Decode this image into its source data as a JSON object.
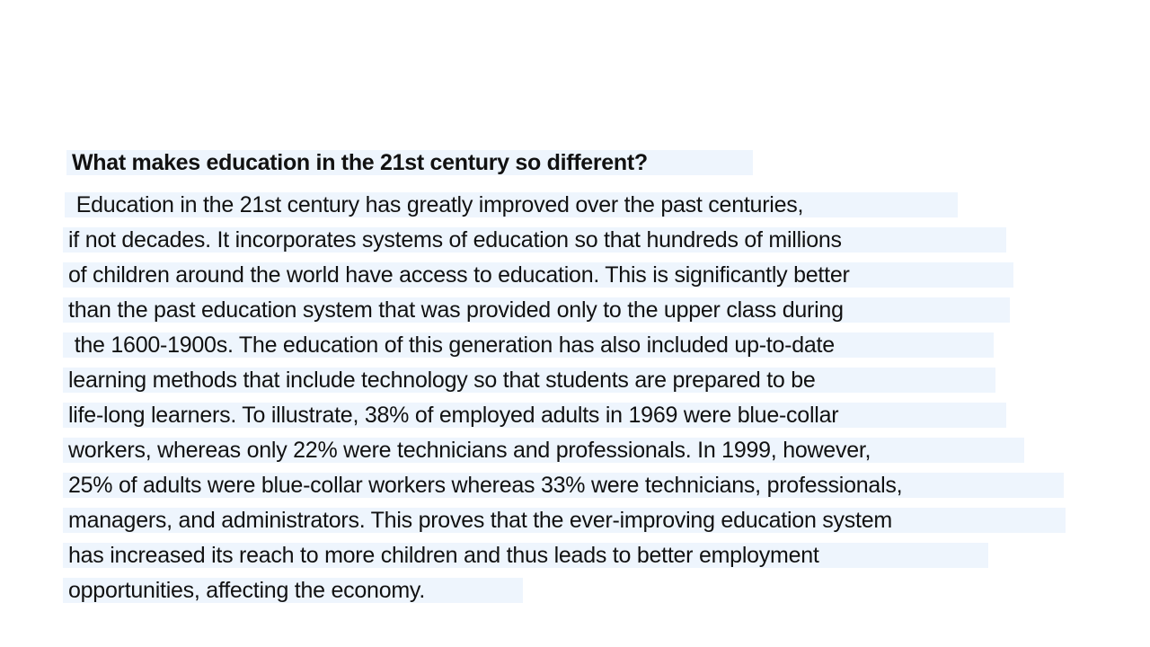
{
  "document": {
    "title": "What makes education in the 21st century so different?",
    "lines": [
      " Education in the 21st century has greatly improved over the past centuries,",
      "if not decades. It incorporates systems of education so that hundreds of millions",
      "of children around the world have access to education. This is significantly better",
      "than the past education system that was provided only to the upper class during",
      " the 1600-1900s. The education of this generation has also included up-to-date",
      "learning methods that include technology so that students are prepared to be",
      "life-long learners. To illustrate, 38% of employed adults in 1969 were blue-collar",
      "workers, whereas only 22% were technicians and professionals. In 1999, however,",
      "25% of adults were blue-collar workers whereas 33% were technicians, professionals,",
      "managers, and administrators. This proves that the ever-improving education system",
      "has increased its reach to more children and thus leads to better employment",
      "opportunities, affecting the economy."
    ]
  },
  "colors": {
    "highlight": "#eef5fd",
    "text": "#111111",
    "background": "#ffffff"
  }
}
